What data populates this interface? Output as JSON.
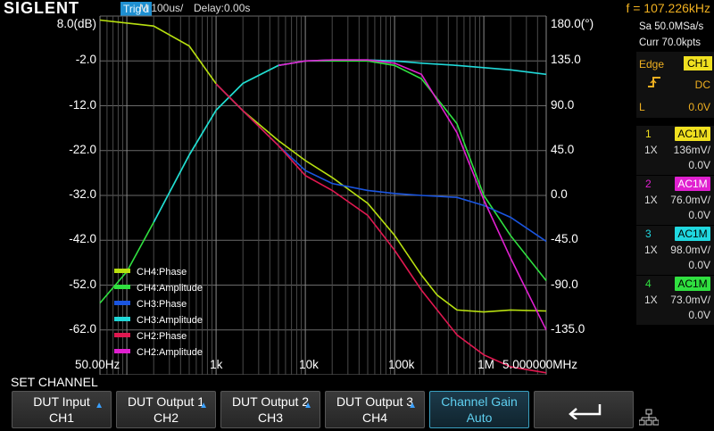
{
  "top": {
    "brand": "SIGLENT",
    "trig_status": "Trig'd",
    "timebase": "M 100us/",
    "delay": "Delay:0.00s",
    "frequency": "f = 107.226kHz"
  },
  "plot": {
    "left_axis": [
      "8.0(dB)",
      "-2.0",
      "-12.0",
      "-22.0",
      "-32.0",
      "-42.0",
      "-52.0",
      "-62.0"
    ],
    "right_axis": [
      "180.0(°)",
      "135.0",
      "90.0",
      "45.0",
      "0.0",
      "-45.0",
      "-90.0",
      "-135.0"
    ],
    "x_axis": [
      "50.00Hz",
      "1k",
      "10k",
      "100k",
      "1M",
      "5.000000MHz"
    ]
  },
  "chart_data": {
    "type": "line",
    "xlabel": "",
    "x_scale": "log",
    "xlim": [
      50,
      5000000
    ],
    "ylim_left_dB": [
      -72,
      8
    ],
    "ylim_right_deg": [
      -180,
      180
    ],
    "legend_position": "bottom-left",
    "series": [
      {
        "name": "CH4:Phase",
        "color": "#b8e010",
        "axis": "right",
        "x": [
          50,
          200,
          500,
          1000,
          2000,
          5000,
          10000,
          20000,
          50000,
          100000,
          200000,
          300000,
          500000,
          1000000,
          2000000,
          5000000
        ],
        "y": [
          176,
          170,
          150,
          112,
          85,
          55,
          35,
          18,
          -8,
          -40,
          -80,
          -100,
          -115,
          -117,
          -115,
          -116
        ]
      },
      {
        "name": "CH4:Amplitude",
        "color": "#30e040",
        "axis": "left",
        "x": [
          50,
          100,
          200,
          500,
          1000,
          2000,
          5000,
          10000,
          20000,
          50000,
          100000,
          200000,
          500000,
          1000000,
          2000000,
          5000000
        ],
        "y": [
          -56,
          -49,
          -38,
          -23,
          -13,
          -7,
          -3,
          -2,
          -2,
          -2,
          -3,
          -6,
          -16,
          -32,
          -41,
          -51
        ]
      },
      {
        "name": "CH3:Phase",
        "color": "#1a55e0",
        "axis": "right",
        "x": [
          1000,
          2000,
          5000,
          10000,
          20000,
          50000,
          100000,
          200000,
          500000,
          1000000,
          2000000,
          5000000
        ],
        "y": [
          112,
          85,
          50,
          25,
          12,
          5,
          2,
          0,
          -2,
          -10,
          -22,
          -46
        ]
      },
      {
        "name": "CH3:Amplitude",
        "color": "#20d8d8",
        "axis": "left",
        "x": [
          200,
          500,
          1000,
          2000,
          5000,
          10000,
          20000,
          50000,
          100000,
          200000,
          500000,
          1000000,
          2000000,
          5000000
        ],
        "y": [
          -38,
          -23,
          -13,
          -7,
          -3,
          -2,
          -1.8,
          -1.8,
          -2,
          -2.5,
          -3,
          -3.5,
          -4,
          -5
        ]
      },
      {
        "name": "CH2:Phase",
        "color": "#e01850",
        "axis": "right",
        "x": [
          1000,
          2000,
          5000,
          10000,
          20000,
          50000,
          100000,
          200000,
          500000,
          1000000,
          2000000,
          5000000
        ],
        "y": [
          112,
          85,
          50,
          20,
          5,
          -20,
          -55,
          -95,
          -140,
          -160,
          -172,
          -178
        ]
      },
      {
        "name": "CH2:Amplitude",
        "color": "#e020d0",
        "axis": "left",
        "x": [
          5000,
          10000,
          20000,
          50000,
          100000,
          200000,
          500000,
          1000000,
          2000000,
          5000000
        ],
        "y": [
          -3,
          -2,
          -1.8,
          -1.8,
          -2.5,
          -5,
          -18,
          -33,
          -46,
          -62
        ]
      }
    ]
  },
  "legend": [
    "CH4:Phase",
    "CH4:Amplitude",
    "CH3:Phase",
    "CH3:Amplitude",
    "CH2:Phase",
    "CH2:Amplitude"
  ],
  "right_panel": {
    "sample_rate": "Sa 50.0MSa/s",
    "memory": "Curr 70.0kpts",
    "trigger": {
      "type": "Edge",
      "source": "CH1",
      "coupling": "DC",
      "level_label": "L",
      "level": "0.0V"
    },
    "channels": [
      {
        "num": "1",
        "coupling": "AC1M",
        "probe": "1X",
        "scale": "136mV/",
        "offset": "0.0V",
        "color": "#f0e020",
        "tag_text_color": "#000"
      },
      {
        "num": "2",
        "coupling": "AC1M",
        "probe": "1X",
        "scale": "76.0mV/",
        "offset": "0.0V",
        "color": "#e020d0",
        "tag_text_color": "#fff"
      },
      {
        "num": "3",
        "coupling": "AC1M",
        "probe": "1X",
        "scale": "98.0mV/",
        "offset": "0.0V",
        "color": "#20d8e0",
        "tag_text_color": "#000"
      },
      {
        "num": "4",
        "coupling": "AC1M",
        "probe": "1X",
        "scale": "73.0mV/",
        "offset": "0.0V",
        "color": "#30e040",
        "tag_text_color": "#000"
      }
    ]
  },
  "menu": {
    "title": "SET CHANNEL",
    "softkeys": [
      {
        "line1": "DUT Input",
        "line2": "CH1"
      },
      {
        "line1": "DUT Output 1",
        "line2": "CH2"
      },
      {
        "line1": "DUT Output 2",
        "line2": "CH3"
      },
      {
        "line1": "DUT Output 3",
        "line2": "CH4"
      },
      {
        "line1": "Channel Gain",
        "line2": "Auto"
      }
    ],
    "back_icon": "return-arrow-icon",
    "network_icon": "network-icon"
  }
}
